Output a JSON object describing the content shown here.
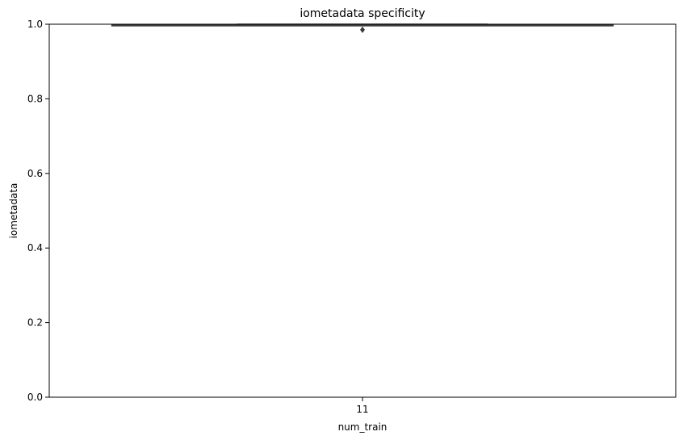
{
  "chart_data": {
    "type": "box",
    "title": "iometadata specificity",
    "xlabel": "num_train",
    "ylabel": "iometadata",
    "categories": [
      "11"
    ],
    "ylim": [
      0,
      1.0
    ],
    "yticks": [
      0.0,
      0.2,
      0.4,
      0.6,
      0.8,
      1.0
    ],
    "ytick_labels": [
      "0.0",
      "0.2",
      "0.4",
      "0.6",
      "0.8",
      "1.0"
    ],
    "boxes": [
      {
        "category": "11",
        "whisker_low": 0.997,
        "q1": 0.997,
        "median": 0.998,
        "q3": 0.999,
        "whisker_high": 1.0,
        "outliers": [
          0.985
        ]
      }
    ],
    "grid": false,
    "colors": {
      "box": "#3a3a3a",
      "outlier": "#3a3a3a",
      "axes": "#000000"
    }
  }
}
